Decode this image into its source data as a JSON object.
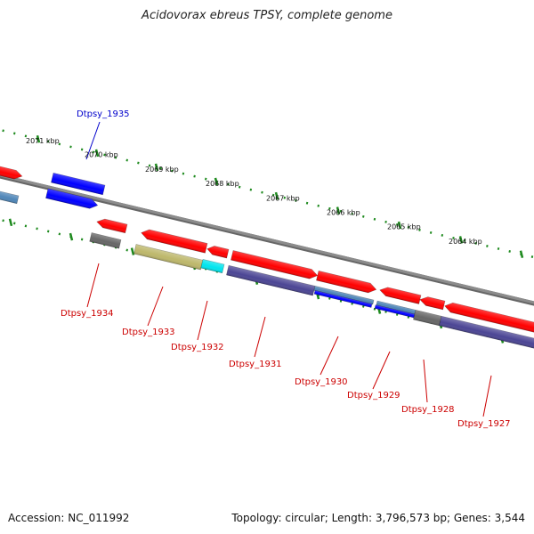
{
  "title": "Acidovorax ebreus TPSY, complete genome",
  "footer": {
    "accession": "Accession: NC_011992",
    "summary": "Topology: circular; Length: 3,796,573 bp; Genes: 3,544"
  },
  "colors": {
    "backbone": "#8c8c8c",
    "tick": "#1e8a1e",
    "label_forward": "#0000cc",
    "label_reverse": "#cc0000",
    "red": "#ff0000",
    "blue": "#0000ff",
    "steelblue": "#4f86b8",
    "gray": "#666666",
    "khaki": "#bdb76b",
    "cyan": "#00e5ee",
    "slate": "#4b4594"
  },
  "kbp_labels": [
    "2071 kbp",
    "2070 kbp",
    "2069 kbp",
    "2068 kbp",
    "2067 kbp",
    "2066 kbp",
    "2065 kbp",
    "2064 kbp"
  ],
  "gene_labels": [
    {
      "text": "Dtpsy_1935",
      "strand": "forward"
    },
    {
      "text": "Dtpsy_1934",
      "strand": "reverse"
    },
    {
      "text": "Dtpsy_1933",
      "strand": "reverse"
    },
    {
      "text": "Dtpsy_1932",
      "strand": "reverse"
    },
    {
      "text": "Dtpsy_1931",
      "strand": "reverse"
    },
    {
      "text": "Dtpsy_1930",
      "strand": "reverse"
    },
    {
      "text": "Dtpsy_1929",
      "strand": "reverse"
    },
    {
      "text": "Dtpsy_1928",
      "strand": "reverse"
    },
    {
      "text": "Dtpsy_1927",
      "strand": "reverse"
    }
  ]
}
